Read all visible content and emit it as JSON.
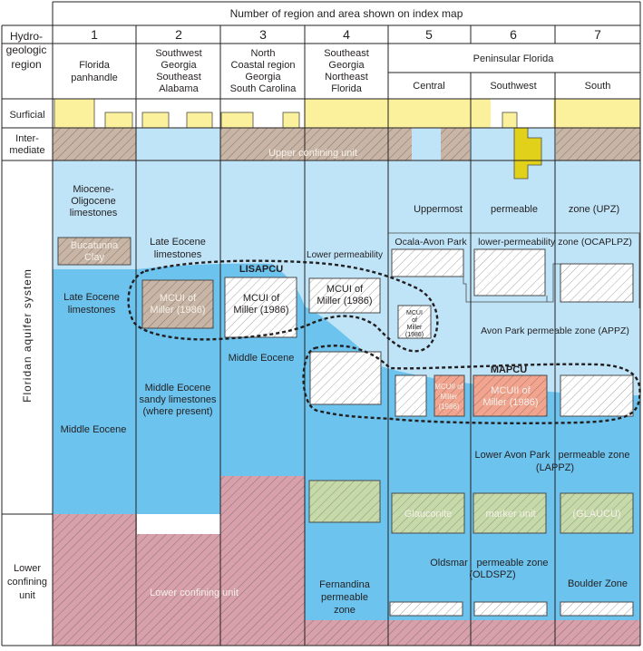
{
  "header": {
    "title": "Number of region and area shown on index map",
    "region_label_lines": [
      "Hydro-",
      "geologic",
      "region"
    ]
  },
  "regions": [
    {
      "number": "1",
      "name_lines": [
        "Florida",
        "panhandle"
      ]
    },
    {
      "number": "2",
      "name_lines": [
        "Southwest",
        "Georgia",
        "Southeast",
        "Alabama"
      ]
    },
    {
      "number": "3",
      "name_lines": [
        "North",
        "Coastal region",
        "Georgia",
        "South Carolina"
      ]
    },
    {
      "number": "4",
      "name_lines": [
        "Southeast",
        "Georgia",
        "Northeast",
        "Florida"
      ]
    },
    {
      "number": "5",
      "name_lines": [
        "Central"
      ]
    },
    {
      "number": "6",
      "name_lines": [
        "Southwest"
      ]
    },
    {
      "number": "7",
      "name_lines": [
        "South"
      ]
    }
  ],
  "peninsular_label": "Peninsular Florida",
  "row_labels": {
    "surficial": "Surficial",
    "intermediate_lines": [
      "Inter-",
      "mediate"
    ],
    "floridan": "Floridan  aquifer  system",
    "lower_lines": [
      "Lower",
      "confining",
      "unit"
    ]
  },
  "units": {
    "upper_confining": "Upper  confining  unit",
    "miocene_lines": [
      "Miocene-",
      "Oligocene",
      "limestones"
    ],
    "bucatunna_lines": [
      "Bucatunna",
      "Clay"
    ],
    "late_eocene_1_lines": [
      "Late Eocene",
      "limestones"
    ],
    "late_eocene_2_lines": [
      "Late Eocene",
      "limestones"
    ],
    "middle_eocene_1": "Middle Eocene",
    "middle_eocene_2_lines": [
      "Middle Eocene",
      "sandy limestones",
      "(where present)"
    ],
    "middle_eocene_3": "Middle Eocene",
    "mcui_2_lines": [
      "MCUI of",
      "Miller (1986)"
    ],
    "mcui_3_lines": [
      "MCUI of",
      "Miller (1986)"
    ],
    "mcui_4_lines": [
      "MCUI of",
      "Miller (1986)"
    ],
    "mcui_5_lines": [
      "MCUI",
      "of",
      "Miller",
      "(1986)"
    ],
    "mcuii_5_lines": [
      "MCUII of",
      "Miller",
      "(1986)"
    ],
    "mcuii_6_lines": [
      "MCUII of",
      "Miller (1986)"
    ],
    "lisapcu": "LISAPCU",
    "mapcu": "MAPCU",
    "lower_permeability": "Lower permeability",
    "upz_parts": [
      "Uppermost",
      "permeable",
      "zone    (UPZ)"
    ],
    "ocaplpz_parts": [
      "Ocala-Avon Park",
      "lower-permeability zone (OCAPLPZ)"
    ],
    "appz": "Avon Park permeable zone (APPZ)",
    "lappz_parts": [
      "Lower Avon Park",
      "permeable zone",
      "(LAPPZ)"
    ],
    "glaucu_parts": [
      "Glauconite",
      "marker unit",
      "(GLAUCU)"
    ],
    "oldspz_parts": [
      "Oldsmar",
      "permeable zone",
      "(OLDSPZ)"
    ],
    "boulder_zone": "Boulder Zone",
    "fernandina_lines": [
      "Fernandina",
      "permeable",
      "zone"
    ],
    "lower_confining": "Lower confining unit"
  },
  "colors": {
    "surficial_yellow": "#fbf19c",
    "light_blue": "#bfe4f8",
    "medium_blue": "#6cc3ee",
    "clay_brown": "#c9b5a5",
    "lower_pink": "#d7a0ab",
    "glauconite_green": "#c6d9a8",
    "mcuii_salmon": "#f2a48f",
    "intermediate_yellow": "#e2d11a"
  }
}
